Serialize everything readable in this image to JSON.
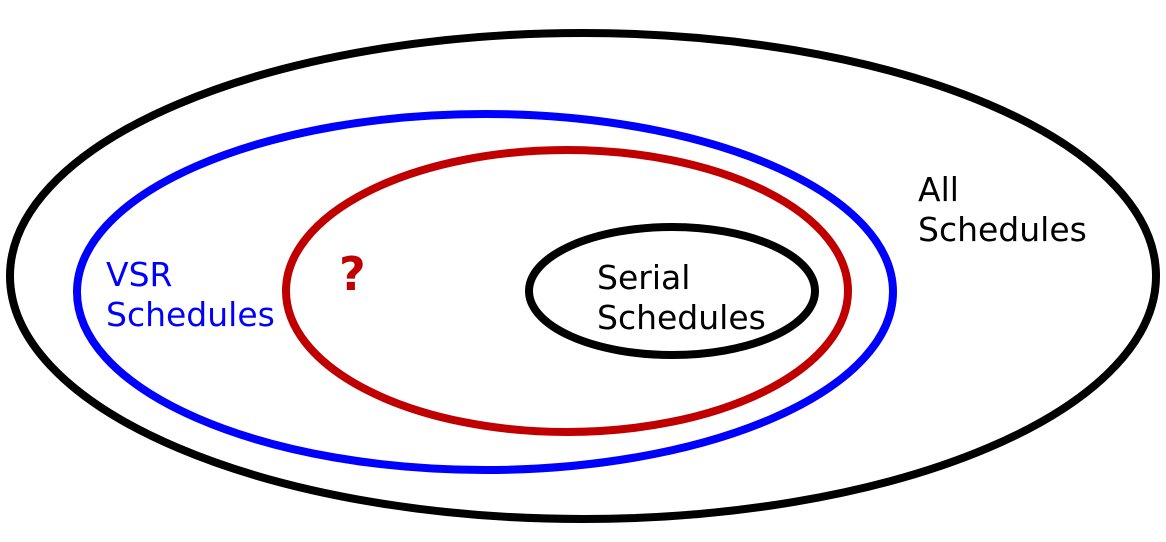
{
  "sets": {
    "all": {
      "line1": "All",
      "line2": "Schedules",
      "color": "#000000"
    },
    "vsr": {
      "line1": "VSR",
      "line2": "Schedules",
      "color": "#0000ff"
    },
    "unknown": {
      "label": "?",
      "color": "#c00000"
    },
    "serial": {
      "line1": "Serial",
      "line2": "Schedules",
      "color": "#000000"
    }
  }
}
